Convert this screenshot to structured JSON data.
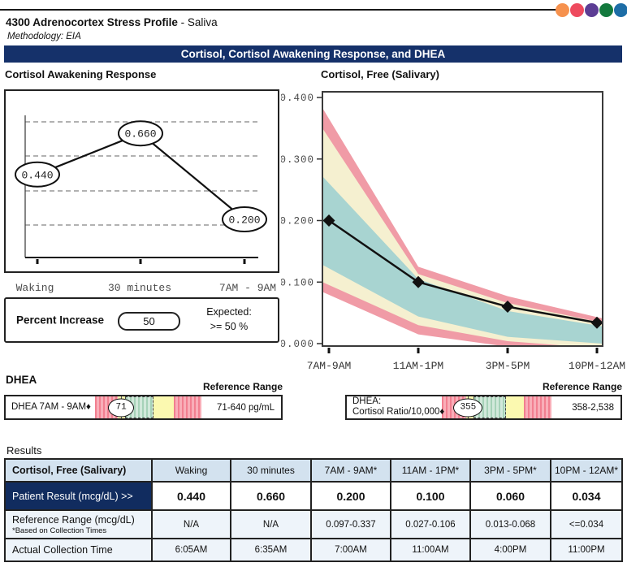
{
  "header": {
    "title": "4300 Adrenocortex Stress Profile",
    "title_suffix": " - Saliva",
    "methodology": "Methodology: EIA",
    "banner": "Cortisol, Cortisol Awakening Response, and DHEA",
    "dot_colors": [
      "#f6914d",
      "#ee4a5e",
      "#5c3d94",
      "#13793d",
      "#1d6da6"
    ]
  },
  "percent_increase": {
    "label": "Percent Increase",
    "value": "50",
    "expected_line1": "Expected:",
    "expected_line2": ">= 50 %"
  },
  "dhea": {
    "heading": "DHEA",
    "bars": [
      {
        "ref_heading": "Reference Range",
        "label_lines": [
          "DHEA 7AM - 9AM♦"
        ],
        "value": "71",
        "range": "71-640 pg/mL",
        "marker_pct": 24.5,
        "zones": [
          {
            "color": "pink",
            "pct": 21
          },
          {
            "color": "yellow",
            "pct": 7
          },
          {
            "color": "green",
            "pct": 27
          },
          {
            "color": "yellow",
            "pct": 19
          },
          {
            "color": "pink",
            "pct": 26
          }
        ]
      },
      {
        "ref_heading": "Reference Range",
        "label_lines": [
          "DHEA:",
          "Cortisol Ratio/10,000♦"
        ],
        "value": "355",
        "range": "358-2,538",
        "marker_pct": 24,
        "zones": [
          {
            "color": "pink",
            "pct": 22
          },
          {
            "color": "yellow",
            "pct": 7
          },
          {
            "color": "green",
            "pct": 29.5
          },
          {
            "color": "yellow",
            "pct": 16
          },
          {
            "color": "pink",
            "pct": 25.5
          }
        ]
      }
    ]
  },
  "results": {
    "heading": "Results",
    "table": {
      "header": [
        "Cortisol, Free (Salivary)",
        "Waking",
        "30 minutes",
        "7AM - 9AM*",
        "11AM - 1PM*",
        "3PM - 5PM*",
        "10PM - 12AM*"
      ],
      "patient_row": {
        "label": "Patient Result (mcg/dL) >>",
        "values": [
          "0.440",
          "0.660",
          "0.200",
          "0.100",
          "0.060",
          "0.034"
        ]
      },
      "ref_row": {
        "label": "Reference Range (mcg/dL)",
        "sublabel": "*Based on Collection Times",
        "values": [
          "N/A",
          "N/A",
          "0.097-0.337",
          "0.027-0.106",
          "0.013-0.068",
          "<=0.034"
        ]
      },
      "time_row": {
        "label": "Actual Collection Time",
        "values": [
          "6:05AM",
          "6:35AM",
          "7:00AM",
          "11:00AM",
          "4:00PM",
          "11:00PM"
        ]
      }
    }
  },
  "chart_data": [
    {
      "type": "line",
      "title": "Cortisol Awakening Response",
      "categories": [
        "Waking",
        "30 minutes",
        "7AM - 9AM"
      ],
      "values": [
        0.44,
        0.66,
        0.2
      ],
      "point_labels": [
        "0.440",
        "0.660",
        "0.200"
      ],
      "grid": "horizontal-dashed",
      "legend": "none"
    },
    {
      "type": "area",
      "title": "Cortisol, Free (Salivary)",
      "categories": [
        "7AM-9AM",
        "11AM-1PM",
        "3PM-5PM",
        "10PM-12AM"
      ],
      "series": [
        {
          "name": "Patient",
          "values": [
            0.2,
            0.1,
            0.06,
            0.034
          ]
        }
      ],
      "ylim": [
        0,
        0.4
      ],
      "ytick_labels": [
        "0.000",
        "0.100",
        "0.200",
        "0.300",
        "0.400"
      ],
      "bands": {
        "pink": {
          "top": [
            0.383,
            0.125,
            0.077,
            0.041
          ],
          "bottom": [
            0.084,
            0.015,
            -0.005,
            -0.015
          ]
        },
        "cream": {
          "top": [
            0.35,
            0.113,
            0.066,
            0.034
          ],
          "bottom": [
            0.1,
            0.03,
            0.004,
            -0.008
          ]
        },
        "teal": {
          "top": [
            0.272,
            0.105,
            0.053,
            0.028
          ],
          "bottom": [
            0.128,
            0.044,
            0.011,
            0.0
          ]
        }
      },
      "band_colors": {
        "pink": "#f09ba6",
        "cream": "#f5f0d0",
        "teal": "#a8d4d1"
      }
    }
  ]
}
